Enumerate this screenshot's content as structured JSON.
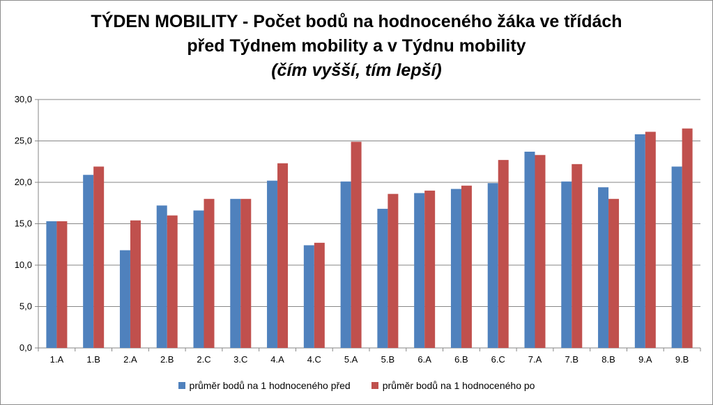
{
  "chart_data": {
    "type": "bar",
    "title_line1": "TÝDEN MOBILITY - Počet bodů na hodnoceného žáka ve třídách",
    "title_line2": "před Týdnem mobility a v Týdnu mobility",
    "subtitle": "(čím vyšší, tím lepší)",
    "categories": [
      "1.A",
      "1.B",
      "2.A",
      "2.B",
      "2.C",
      "3.C",
      "4.A",
      "4.C",
      "5.A",
      "5.B",
      "6.A",
      "6.B",
      "6.C",
      "7.A",
      "7.B",
      "8.B",
      "9.A",
      "9.B"
    ],
    "series": [
      {
        "name": "průměr bodů na 1 hodnoceného před",
        "color": "#4f81bd",
        "values": [
          15.3,
          20.9,
          11.8,
          17.2,
          16.6,
          18.0,
          20.2,
          12.4,
          20.1,
          16.8,
          18.7,
          19.2,
          19.9,
          23.7,
          20.1,
          19.4,
          25.8,
          21.9
        ]
      },
      {
        "name": "průměr bodů na 1 hodnoceného po",
        "color": "#c0504d",
        "values": [
          15.3,
          21.9,
          15.4,
          16.0,
          18.0,
          18.0,
          22.3,
          12.7,
          24.9,
          18.6,
          19.0,
          19.6,
          22.7,
          23.3,
          22.2,
          18.0,
          26.1,
          26.5
        ]
      }
    ],
    "ylim": [
      0,
      30
    ],
    "yticks": [
      "0,0",
      "5,0",
      "10,0",
      "15,0",
      "20,0",
      "25,0",
      "30,0"
    ],
    "ytick_values": [
      0,
      5,
      10,
      15,
      20,
      25,
      30
    ],
    "grid": true,
    "legend_position": "bottom"
  }
}
